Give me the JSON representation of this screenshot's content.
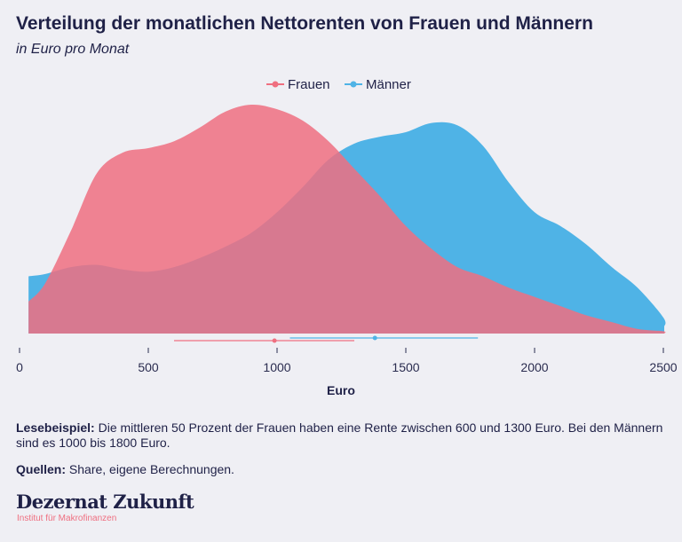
{
  "header": {
    "title": "Verteilung der monatlichen Nettorenten von Frauen und Männern",
    "subtitle": "in Euro pro Monat"
  },
  "chart_data": {
    "type": "area",
    "title": "Verteilung der monatlichen Nettorenten von Frauen und Männern",
    "subtitle": "in Euro pro Monat",
    "xlabel": "Euro",
    "ylabel": "",
    "xlim": [
      0,
      2550
    ],
    "xticks": [
      "0",
      "500",
      "1000",
      "1500",
      "2000",
      "2500"
    ],
    "xtick_values": [
      0,
      500,
      1000,
      1500,
      2000,
      2500
    ],
    "grid": false,
    "legend_position": "top-center",
    "x": [
      35,
      100,
      200,
      300,
      400,
      500,
      600,
      700,
      800,
      900,
      1000,
      1100,
      1200,
      1300,
      1400,
      1500,
      1600,
      1700,
      1800,
      1900,
      2000,
      2100,
      2200,
      2300,
      2400,
      2500,
      2560
    ],
    "series": [
      {
        "name": "Frauen",
        "color": "#ef6f80",
        "values": [
          0.14,
          0.22,
          0.45,
          0.7,
          0.79,
          0.81,
          0.84,
          0.9,
          0.97,
          1.0,
          0.98,
          0.93,
          0.84,
          0.72,
          0.6,
          0.47,
          0.37,
          0.29,
          0.25,
          0.2,
          0.16,
          0.12,
          0.08,
          0.05,
          0.02,
          0.01,
          0.0
        ],
        "interval": {
          "low": 600,
          "median": 990,
          "high": 1300
        }
      },
      {
        "name": "Männer",
        "color": "#4fb3e6",
        "values": [
          0.25,
          0.26,
          0.29,
          0.3,
          0.28,
          0.27,
          0.29,
          0.33,
          0.38,
          0.44,
          0.53,
          0.64,
          0.76,
          0.83,
          0.86,
          0.88,
          0.92,
          0.91,
          0.82,
          0.66,
          0.53,
          0.47,
          0.39,
          0.29,
          0.2,
          0.07,
          0.03
        ],
        "interval": {
          "low": 1050,
          "median": 1380,
          "high": 1780
        }
      }
    ]
  },
  "notes": {
    "example_label": "Lesebeispiel:",
    "example_text": " Die mittleren 50 Prozent der Frauen haben eine Rente zwischen 600 und 1300 Euro. Bei den Männern sind es 1000 bis 1800 Euro.",
    "sources_label": "Quellen:",
    "sources_text": " Share, eigene Berechnungen."
  },
  "logo": {
    "name": "Dezernat Zukunft",
    "tagline": "Institut für Makrofinanzen"
  }
}
